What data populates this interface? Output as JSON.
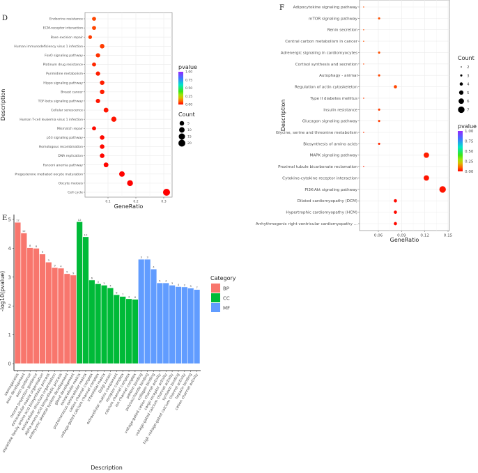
{
  "panels": {
    "d": "D",
    "e": "E",
    "f": "F"
  },
  "chart_data": [
    {
      "type": "scatter",
      "id": "D",
      "xlabel": "GeneRatio",
      "ylabel": "Description",
      "xticks": [
        0.1,
        0.2,
        0.3
      ],
      "xlim": [
        0.0175,
        0.33
      ],
      "color_legend": {
        "title": "pvalue",
        "ticks": [
          "1.00",
          "0.75",
          "0.50",
          "0.25",
          "0.00"
        ]
      },
      "size_legend": {
        "title": "Count",
        "values": [
          5,
          10,
          15,
          20
        ]
      },
      "points": [
        {
          "label": "Endocrine resistance",
          "x": 0.05,
          "count": 3,
          "pvalue": 0.07
        },
        {
          "label": "ECM-receptor interaction",
          "x": 0.05,
          "count": 3,
          "pvalue": 0.07
        },
        {
          "label": "Base excision repair",
          "x": 0.036,
          "count": 2,
          "pvalue": 0.06
        },
        {
          "label": "Human immunodeficiency virus 1 infection",
          "x": 0.079,
          "count": 5,
          "pvalue": 0.06
        },
        {
          "label": "FoxO signaling pathway",
          "x": 0.064,
          "count": 4,
          "pvalue": 0.05
        },
        {
          "label": "Platinum drug resistance",
          "x": 0.05,
          "count": 3,
          "pvalue": 0.04
        },
        {
          "label": "Pyrimidine metabolism",
          "x": 0.064,
          "count": 4,
          "pvalue": 0.03
        },
        {
          "label": "Hippo signaling pathway",
          "x": 0.079,
          "count": 5,
          "pvalue": 0.03
        },
        {
          "label": "Breast cancer",
          "x": 0.079,
          "count": 5,
          "pvalue": 0.03
        },
        {
          "label": "TGF-beta signaling pathway",
          "x": 0.064,
          "count": 4,
          "pvalue": 0.02
        },
        {
          "label": "Cellular senescence",
          "x": 0.093,
          "count": 6,
          "pvalue": 0.02
        },
        {
          "label": "Human T-cell leukemia virus 1 infection",
          "x": 0.121,
          "count": 8,
          "pvalue": 0.02
        },
        {
          "label": "Mismatch repair",
          "x": 0.05,
          "count": 3,
          "pvalue": 0.01
        },
        {
          "label": "p53 signaling pathway",
          "x": 0.079,
          "count": 5,
          "pvalue": 0.01
        },
        {
          "label": "Homologous recombination",
          "x": 0.079,
          "count": 5,
          "pvalue": 0.01
        },
        {
          "label": "DNA replication",
          "x": 0.079,
          "count": 5,
          "pvalue": 0.005
        },
        {
          "label": "Fanconi anemia pathway",
          "x": 0.093,
          "count": 6,
          "pvalue": 0.005
        },
        {
          "label": "Progesterone mediated oocyte maturation",
          "x": 0.15,
          "count": 10,
          "pvalue": 0.002
        },
        {
          "label": "Oocyte meiosis",
          "x": 0.179,
          "count": 12,
          "pvalue": 0.001
        },
        {
          "label": "Cell cycle",
          "x": 0.31,
          "count": 21,
          "pvalue": 0.0
        }
      ]
    },
    {
      "type": "bar",
      "id": "E",
      "xlabel": "Description",
      "ylabel": "-log10(pvalue)",
      "ylim": [
        0,
        5
      ],
      "yticks": [
        0,
        1,
        2,
        3,
        4,
        5
      ],
      "legend": {
        "title": "Category",
        "entries": [
          {
            "name": "BP",
            "color": "#f8766d"
          },
          {
            "name": "CC",
            "color": "#00ba38"
          },
          {
            "name": "MF",
            "color": "#619cff"
          }
        ]
      },
      "bars": [
        {
          "label": "axonogenesis",
          "category": "BP",
          "value": 4.9,
          "count": "12"
        },
        {
          "label": "axon development",
          "category": "BP",
          "value": 4.53,
          "count": "12"
        },
        {
          "label": "axon guidance",
          "category": "BP",
          "value": 4.02,
          "count": "8"
        },
        {
          "label": "neuron projection guidance",
          "category": "BP",
          "value": 4.0,
          "count": "8"
        },
        {
          "label": "extracellular matrix organization",
          "category": "BP",
          "value": 3.8,
          "count": "9"
        },
        {
          "label": "aspartate family amino acid biosynthetic process",
          "category": "BP",
          "value": 3.52,
          "count": "3"
        },
        {
          "label": "extracellular structure organization",
          "category": "BP",
          "value": 3.33,
          "count": "9"
        },
        {
          "label": "alpha-amino acid biosynthetic process",
          "category": "BP",
          "value": 3.31,
          "count": "4"
        },
        {
          "label": "embryonic skeletal system development",
          "category": "BP",
          "value": 3.12,
          "count": "5"
        },
        {
          "label": "gland development",
          "category": "BP",
          "value": 3.07,
          "count": "9"
        },
        {
          "label": "extracellular matrix",
          "category": "CC",
          "value": 4.92,
          "count": "12"
        },
        {
          "label": "proteinaceous extracellular matrix",
          "category": "CC",
          "value": 4.4,
          "count": "10"
        },
        {
          "label": "cation channel complex",
          "category": "CC",
          "value": 2.9,
          "count": "6"
        },
        {
          "label": "voltage-gated calcium channel complex",
          "category": "CC",
          "value": 2.77,
          "count": "3"
        },
        {
          "label": "interstitial matrix",
          "category": "CC",
          "value": 2.72,
          "count": "2"
        },
        {
          "label": "Golgi lumen",
          "category": "CC",
          "value": 2.63,
          "count": "4"
        },
        {
          "label": "extracellular matrix component",
          "category": "CC",
          "value": 2.39,
          "count": "6"
        },
        {
          "label": "receptor complex",
          "category": "CC",
          "value": 2.33,
          "count": "7"
        },
        {
          "label": "calcium channel complex",
          "category": "CC",
          "value": 2.25,
          "count": "3"
        },
        {
          "label": "ion channel complex",
          "category": "CC",
          "value": 2.23,
          "count": "6"
        },
        {
          "label": "pattern binding",
          "category": "MF",
          "value": 3.62,
          "count": "3"
        },
        {
          "label": "polysaccharide binding",
          "category": "MF",
          "value": 3.62,
          "count": "3"
        },
        {
          "label": "collagen binding",
          "category": "MF",
          "value": 3.28,
          "count": "4"
        },
        {
          "label": "voltage-gated cation channel activity",
          "category": "MF",
          "value": 2.8,
          "count": "5"
        },
        {
          "label": "cargo receptor activity",
          "category": "MF",
          "value": 2.8,
          "count": "4"
        },
        {
          "label": "voltage-gated calcium channel activity",
          "category": "MF",
          "value": 2.72,
          "count": "3"
        },
        {
          "label": "syntaxin binding",
          "category": "MF",
          "value": 2.67,
          "count": "4"
        },
        {
          "label": "high voltage-gated calcium channel activity",
          "category": "MF",
          "value": 2.66,
          "count": "2"
        },
        {
          "label": "heparin binding",
          "category": "MF",
          "value": 2.62,
          "count": "5"
        },
        {
          "label": "cation channel activity",
          "category": "MF",
          "value": 2.57,
          "count": "7"
        }
      ]
    },
    {
      "type": "scatter",
      "id": "F",
      "xlabel": "GeneRatio",
      "ylabel": "Description",
      "xticks": [
        0.06,
        0.09,
        0.12,
        0.15
      ],
      "xlim": [
        0.0357,
        0.1518
      ],
      "color_legend": {
        "title": "pvalue",
        "ticks": [
          "1.00",
          "0.75",
          "0.50",
          "0.25",
          "0.00"
        ]
      },
      "size_legend": {
        "title": "Count",
        "values": [
          2,
          3,
          4,
          5,
          6,
          7
        ]
      },
      "points": [
        {
          "label": "Adipocytokine signaling pathway",
          "x": 0.041,
          "count": 2,
          "pvalue": 0.08
        },
        {
          "label": "mTOR signaling pathway",
          "x": 0.061,
          "count": 3,
          "pvalue": 0.08
        },
        {
          "label": "Renin secretion",
          "x": 0.041,
          "count": 2,
          "pvalue": 0.08
        },
        {
          "label": "Central carbon metabolism in cancer",
          "x": 0.041,
          "count": 2,
          "pvalue": 0.08
        },
        {
          "label": "Adrenergic signaling in cardiomyocytes",
          "x": 0.061,
          "count": 3,
          "pvalue": 0.08
        },
        {
          "label": "Cortisol synthesis and secretion",
          "x": 0.041,
          "count": 2,
          "pvalue": 0.07
        },
        {
          "label": "Autophagy - animal",
          "x": 0.061,
          "count": 3,
          "pvalue": 0.07
        },
        {
          "label": "Regulation of actin cytoskeleton",
          "x": 0.082,
          "count": 4,
          "pvalue": 0.07
        },
        {
          "label": "Type II diabetes mellitus",
          "x": 0.041,
          "count": 2,
          "pvalue": 0.06
        },
        {
          "label": "Insulin resistance",
          "x": 0.061,
          "count": 3,
          "pvalue": 0.06
        },
        {
          "label": "Glucagon signaling pathway",
          "x": 0.061,
          "count": 3,
          "pvalue": 0.06
        },
        {
          "label": "Glycine, serine and threonine metabolism",
          "x": 0.041,
          "count": 2,
          "pvalue": 0.05
        },
        {
          "label": "Biosynthesis of amino acids",
          "x": 0.061,
          "count": 3,
          "pvalue": 0.04
        },
        {
          "label": "MAPK signaling pathway",
          "x": 0.122,
          "count": 6,
          "pvalue": 0.03
        },
        {
          "label": "Proximal tubule bicarbonate reclamation",
          "x": 0.041,
          "count": 2,
          "pvalue": 0.03
        },
        {
          "label": "Cytokine-cytokine receptor interaction",
          "x": 0.122,
          "count": 6,
          "pvalue": 0.02
        },
        {
          "label": "PI3K-Akt signaling pathway",
          "x": 0.143,
          "count": 7,
          "pvalue": 0.02
        },
        {
          "label": "Dilated cardiomyopathy (DCM)",
          "x": 0.082,
          "count": 4,
          "pvalue": 0.01
        },
        {
          "label": "Hypertrophic cardiomyopathy (HCM)",
          "x": 0.082,
          "count": 4,
          "pvalue": 0.01
        },
        {
          "label": "Arrhythmogenic right ventricular cardiomyopathy ...",
          "x": 0.082,
          "count": 4,
          "pvalue": 0.01
        }
      ]
    }
  ]
}
